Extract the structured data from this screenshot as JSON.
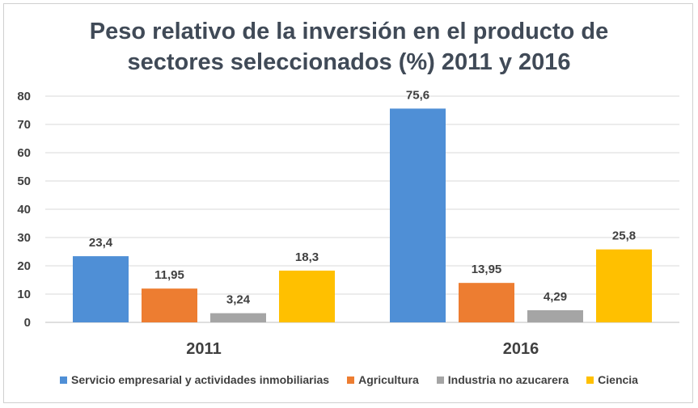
{
  "chart_data": {
    "type": "bar",
    "title_line1": "Peso relativo de la inversión en el producto de",
    "title_line2": "sectores seleccionados (%) 2011 y 2016",
    "categories": [
      "2011",
      "2016"
    ],
    "series": [
      {
        "name": "Servicio empresarial y actividades inmobiliarias",
        "values": [
          23.4,
          75.6
        ],
        "labels": [
          "23,4",
          "75,6"
        ],
        "color": "#4f8fd6"
      },
      {
        "name": "Agricultura",
        "values": [
          11.95,
          13.95
        ],
        "labels": [
          "11,95",
          "13,95"
        ],
        "color": "#ed7d31"
      },
      {
        "name": "Industria no azucarera",
        "values": [
          3.24,
          4.29
        ],
        "labels": [
          "3,24",
          "4,29"
        ],
        "color": "#a5a5a5"
      },
      {
        "name": "Ciencia",
        "values": [
          18.3,
          25.8
        ],
        "labels": [
          "18,3",
          "25,8"
        ],
        "color": "#ffc000"
      }
    ],
    "yticks": [
      "0",
      "10",
      "20",
      "30",
      "40",
      "50",
      "60",
      "70",
      "80"
    ],
    "ylim": [
      0,
      80
    ],
    "xlabel": "",
    "ylabel": "",
    "grid": true,
    "legend_position": "bottom"
  }
}
